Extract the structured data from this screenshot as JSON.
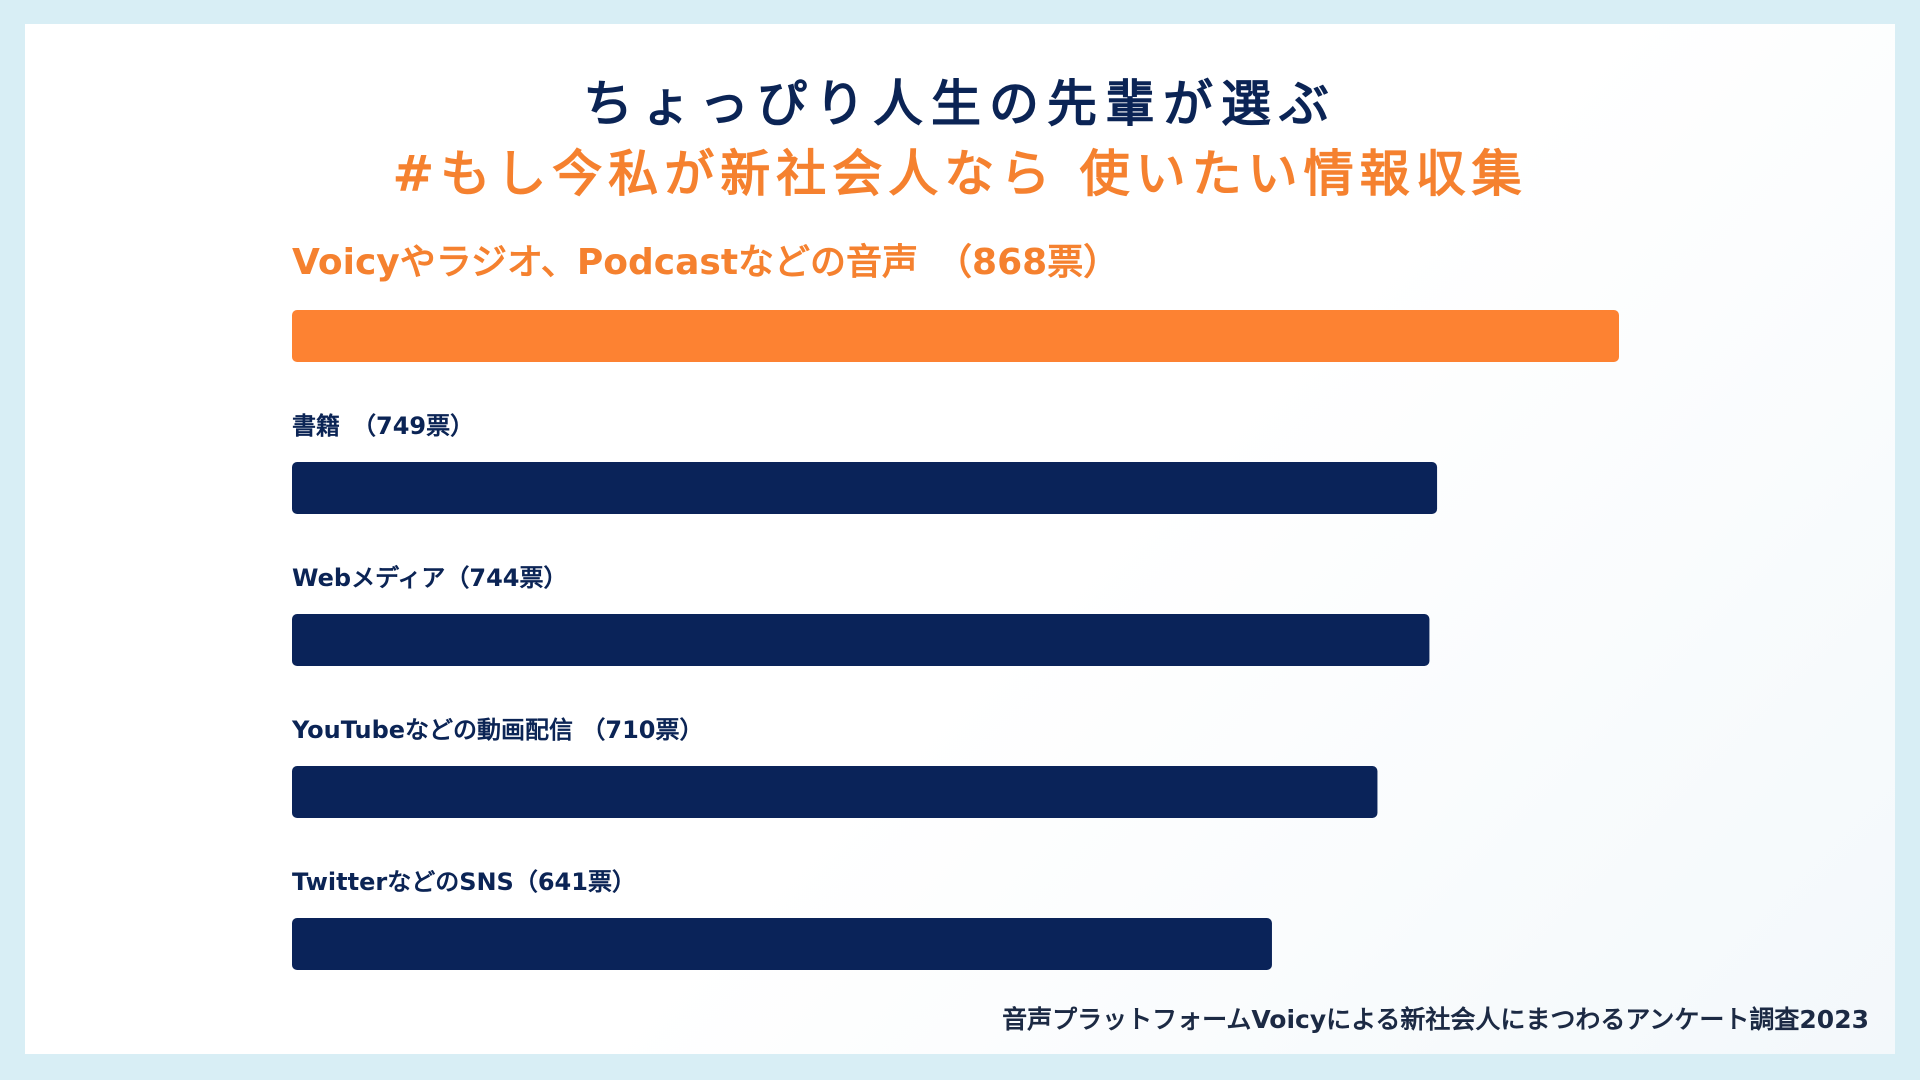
{
  "title": {
    "line1": "ちょっぴり人生の先輩が選ぶ",
    "line2": "#もし今私が新社会人なら 使いたい情報収集"
  },
  "footnote": "音声プラットフォームVoicyによる新社会人にまつわるアンケート調査2023",
  "colors": {
    "highlight": "#fd8232",
    "bar": "#0a2359",
    "highlight_text": "#f5812f",
    "label_text": "#0b2455"
  },
  "chart_data": {
    "type": "bar",
    "orientation": "horizontal",
    "unit": "票",
    "categories": [
      "Voicyやラジオ、Podcastなどの音声",
      "書籍",
      "Webメディア",
      "YouTubeなどの動画配信",
      "TwitterなどのSNS"
    ],
    "labels": [
      "Voicyやラジオ、Podcastなどの音声　（868票）",
      "書籍　（749票）",
      "Webメディア（744票）",
      "YouTubeなどの動画配信 （710票）",
      "TwitterなどのSNS（641票）"
    ],
    "values": [
      868,
      749,
      744,
      710,
      641
    ],
    "highlight_index": 0,
    "grid": false,
    "legend": "none"
  }
}
